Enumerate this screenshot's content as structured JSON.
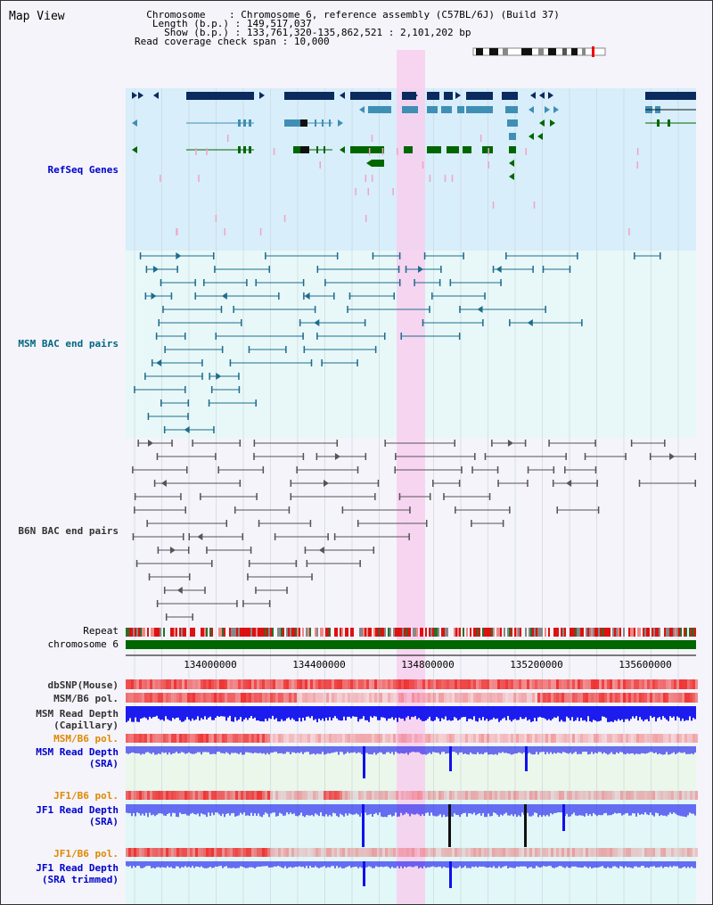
{
  "title": "Map View",
  "info": {
    "chromosome_label": "Chromosome",
    "chromosome_value": "Chromosome 6, reference assembly (C57BL/6J) (Build 37)",
    "length_label": "Length (b.p.)",
    "length_value": "149,517,037",
    "show_label": "Show (b.p.)",
    "show_value": "133,761,320-135,862,521 : 2,101,202 bp",
    "coverage_label": "Read coverage check span",
    "coverage_value": "10,000"
  },
  "tracks": {
    "refseq": "RefSeq Genes",
    "msm_bac": "MSM BAC end pairs",
    "b6n_bac": "B6N BAC end pairs",
    "repeat": "Repeat",
    "chromosome": "chromosome 6",
    "dbsnp": "dbSNP(Mouse)",
    "msm_b6_pol_1": "MSM/B6 pol.",
    "msm_depth_cap": "MSM Read Depth\n(Capillary)",
    "msm_b6_pol_2": "MSM/B6 pol.",
    "msm_depth_sra": "MSM Read Depth\n(SRA)",
    "jf1_b6_pol_1": "JF1/B6 pol.",
    "jf1_depth_sra": "JF1 Read Depth\n(SRA)",
    "jf1_b6_pol_2": "JF1/B6 pol.",
    "jf1_depth_trim": "JF1 Read Depth\n(SRA trimmed)"
  },
  "ruler": {
    "ticks": [
      "134000000",
      "134400000",
      "134800000",
      "135200000",
      "135600000"
    ]
  },
  "colors": {
    "gene_dark": "#0b2a5e",
    "gene_mid": "#3f8fb5",
    "gene_green": "#006600",
    "msm_bac": "#1e6b8e",
    "b6n_bac": "#555555",
    "depth_blue": "#1010ee",
    "highlight": "#f7cfee"
  }
}
